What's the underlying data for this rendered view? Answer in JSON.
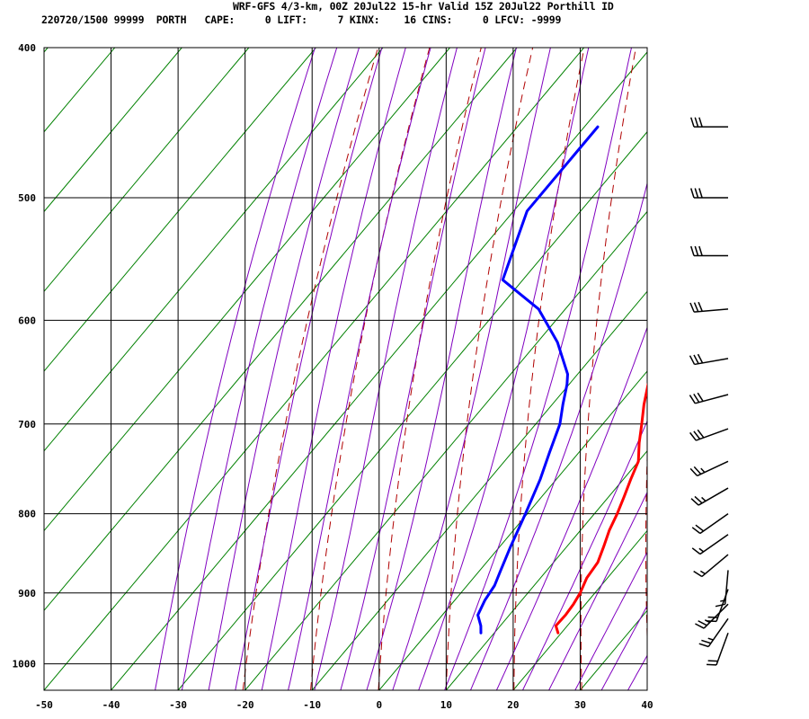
{
  "header": {
    "title": "WRF-GFS 4/3-km, 00Z 20Jul22 15-hr Valid 15Z 20Jul22 Porthill ID",
    "subtitle": "220720/1500 99999  PORTH   CAPE:     0 LIFT:     7 KINX:    16 CINS:     0 LFCV: -9999"
  },
  "colors": {
    "temperature": "#ff0000",
    "dewpoint": "#0000ff",
    "isotherms": "#008000",
    "dry_adiabats": "#b00000",
    "moist_adiabats": "#8000c0",
    "grid": "#000000",
    "wind_barbs": "#000000"
  },
  "chart_data": {
    "type": "skew-t",
    "xlabel": "",
    "ylabel": "",
    "x_ticks": [
      -50,
      -40,
      -30,
      -20,
      -10,
      0,
      10,
      20,
      30,
      40
    ],
    "y_ticks": [
      400,
      500,
      600,
      700,
      800,
      900,
      1000
    ],
    "ylim": [
      400,
      1040
    ],
    "xlim": [
      -50,
      40
    ],
    "y_scale": "log-pressure",
    "grid": true,
    "series": [
      {
        "name": "",
        "points": [
          {
            "p": 955,
            "t": 19.5
          },
          {
            "p": 945,
            "t": 18.3
          },
          {
            "p": 930,
            "t": 18.4
          },
          {
            "p": 915,
            "t": 18.2
          },
          {
            "p": 900,
            "t": 17.8
          },
          {
            "p": 880,
            "t": 16.9
          },
          {
            "p": 860,
            "t": 16.6
          },
          {
            "p": 840,
            "t": 15.5
          },
          {
            "p": 820,
            "t": 14.3
          },
          {
            "p": 800,
            "t": 13.4
          },
          {
            "p": 780,
            "t": 12.3
          },
          {
            "p": 760,
            "t": 11.1
          },
          {
            "p": 740,
            "t": 10.0
          },
          {
            "p": 720,
            "t": 7.8
          },
          {
            "p": 700,
            "t": 5.8
          },
          {
            "p": 680,
            "t": 3.7
          },
          {
            "p": 660,
            "t": 1.8
          },
          {
            "p": 640,
            "t": 0.0
          },
          {
            "p": 620,
            "t": -1.6
          },
          {
            "p": 600,
            "t": -2.8
          },
          {
            "p": 580,
            "t": -4.3
          },
          {
            "p": 560,
            "t": -5.9
          },
          {
            "p": 540,
            "t": -7.4
          },
          {
            "p": 520,
            "t": -9.0
          },
          {
            "p": 500,
            "t": -10.4
          },
          {
            "p": 480,
            "t": -12.2
          },
          {
            "p": 460,
            "t": -14.3
          },
          {
            "p": 450,
            "t": -15.4
          }
        ]
      },
      {
        "name": "",
        "points": [
          {
            "p": 955,
            "t": 8.0
          },
          {
            "p": 945,
            "t": 7.1
          },
          {
            "p": 930,
            "t": 5.3
          },
          {
            "p": 910,
            "t": 4.5
          },
          {
            "p": 890,
            "t": 4.1
          },
          {
            "p": 870,
            "t": 3.1
          },
          {
            "p": 840,
            "t": 1.6
          },
          {
            "p": 800,
            "t": -0.3
          },
          {
            "p": 760,
            "t": -2.4
          },
          {
            "p": 730,
            "t": -4.4
          },
          {
            "p": 700,
            "t": -6.4
          },
          {
            "p": 680,
            "t": -8.4
          },
          {
            "p": 660,
            "t": -10.3
          },
          {
            "p": 650,
            "t": -11.5
          },
          {
            "p": 620,
            "t": -17.0
          },
          {
            "p": 590,
            "t": -24.0
          },
          {
            "p": 565,
            "t": -33.0
          },
          {
            "p": 510,
            "t": -38.0
          },
          {
            "p": 450,
            "t": -38.0
          }
        ]
      }
    ],
    "wind_barbs": [
      {
        "p": 955,
        "speed_kt": 20,
        "dir_deg": 200
      },
      {
        "p": 935,
        "speed_kt": 25,
        "dir_deg": 215
      },
      {
        "p": 915,
        "speed_kt": 25,
        "dir_deg": 225
      },
      {
        "p": 895,
        "speed_kt": 20,
        "dir_deg": 200
      },
      {
        "p": 870,
        "speed_kt": 15,
        "dir_deg": 185
      },
      {
        "p": 850,
        "speed_kt": 15,
        "dir_deg": 230
      },
      {
        "p": 825,
        "speed_kt": 15,
        "dir_deg": 235
      },
      {
        "p": 800,
        "speed_kt": 20,
        "dir_deg": 235
      },
      {
        "p": 770,
        "speed_kt": 25,
        "dir_deg": 240
      },
      {
        "p": 740,
        "speed_kt": 25,
        "dir_deg": 245
      },
      {
        "p": 705,
        "speed_kt": 30,
        "dir_deg": 250
      },
      {
        "p": 670,
        "speed_kt": 30,
        "dir_deg": 255
      },
      {
        "p": 635,
        "speed_kt": 30,
        "dir_deg": 260
      },
      {
        "p": 590,
        "speed_kt": 30,
        "dir_deg": 265
      },
      {
        "p": 545,
        "speed_kt": 30,
        "dir_deg": 270
      },
      {
        "p": 500,
        "speed_kt": 30,
        "dir_deg": 270
      },
      {
        "p": 450,
        "speed_kt": 30,
        "dir_deg": 270
      }
    ]
  }
}
